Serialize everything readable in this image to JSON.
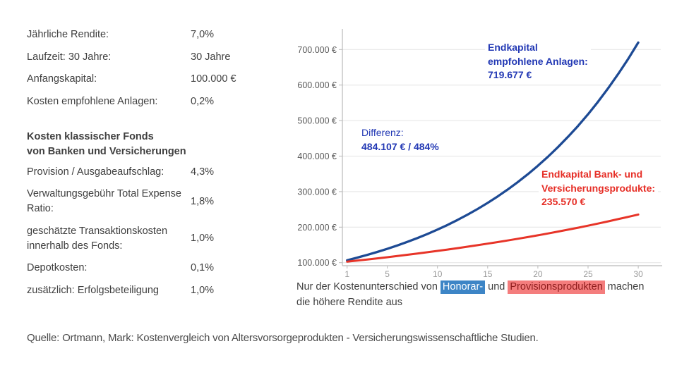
{
  "colors": {
    "blue_curve": "#1d4a94",
    "red_curve": "#e73428",
    "blue_text": "#2238b4",
    "red_text": "#e62e26",
    "chip_blue_bg": "#3d85c6",
    "chip_blue_text": "#ffffff",
    "chip_red_bg": "#f47d7d",
    "chip_red_text": "#8f1d1d",
    "grid": "#e4e4e4",
    "axis": "#b9b9b9",
    "xtick_label": "#9a9a9a",
    "ytick_label": "#5a5a5a",
    "body_text": "#3f3f3f",
    "source_text": "#4a4a4a"
  },
  "params": {
    "rows": [
      {
        "label": "Jährliche Rendite:",
        "value": "7,0%"
      },
      {
        "label": "Laufzeit: 30 Jahre:",
        "value": "30 Jahre"
      },
      {
        "label": "Anfangskapital:",
        "value": "100.000 €"
      },
      {
        "label": "Kosten empfohlene Anlagen:",
        "value": "0,2%"
      }
    ],
    "section_title_line1": "Kosten klassischer Fonds",
    "section_title_line2": "von Banken und Versicherungen",
    "cost_rows": [
      {
        "label": "Provision / Ausgabeaufschlag:",
        "value": "4,3%"
      },
      {
        "label": "Verwaltungsgebühr Total Expense Ratio:",
        "value": "1,8%"
      },
      {
        "label": "geschätzte Transaktionskosten innerhalb des Fonds:",
        "value": "1,0%"
      },
      {
        "label": "Depotkosten:",
        "value": "0,1%"
      },
      {
        "label": "zusätzlich: Erfolgsbeteiligung",
        "value": "1,0%"
      }
    ]
  },
  "chart_data": {
    "type": "line",
    "x": [
      1,
      2,
      3,
      4,
      5,
      6,
      7,
      8,
      9,
      10,
      11,
      12,
      13,
      14,
      15,
      16,
      17,
      18,
      19,
      20,
      21,
      22,
      23,
      24,
      25,
      26,
      27,
      28,
      29,
      30
    ],
    "series": [
      {
        "name": "Endkapital empfohlene Anlagen",
        "color_key": "blue_curve",
        "stroke_width": 3.3,
        "values": [
          106800,
          114062,
          121819,
          130102,
          138949,
          148398,
          158489,
          169266,
          180776,
          193069,
          206198,
          220219,
          235194,
          251187,
          268268,
          286510,
          305993,
          326801,
          349023,
          372757,
          398104,
          425175,
          454087,
          484965,
          517943,
          553163,
          590778,
          630951,
          673856,
          719677
        ]
      },
      {
        "name": "Endkapital Bank- und Versicherungsprodukte",
        "color_key": "red_curve",
        "stroke_width": 3,
        "values": [
          102897,
          105879,
          108947,
          112104,
          115353,
          118696,
          122135,
          125675,
          129317,
          133064,
          136920,
          140888,
          144971,
          149172,
          153495,
          157943,
          162520,
          167229,
          172075,
          177062,
          182193,
          187472,
          192905,
          198495,
          204247,
          210166,
          216256,
          222523,
          228971,
          235570
        ]
      }
    ],
    "xticks": [
      1,
      5,
      10,
      15,
      20,
      25,
      30
    ],
    "xtick_labels": [
      "1",
      "5",
      "10",
      "15",
      "20",
      "25",
      "30"
    ],
    "yticks": [
      100000,
      200000,
      300000,
      400000,
      500000,
      600000,
      700000
    ],
    "ytick_labels": [
      "100.000 €",
      "200.000 €",
      "300.000 €",
      "400.000 €",
      "500.000 €",
      "600.000 €",
      "700.000 €"
    ],
    "ylim": [
      91000,
      755000
    ],
    "grid": "horizontal",
    "legend": "none",
    "title": "",
    "xlabel": "",
    "ylabel": "",
    "annotations": {
      "recommended": {
        "line1": "Endkapital",
        "line2": "empfohlene Anlagen:",
        "value": "719.677 €"
      },
      "difference": {
        "label": "Differenz:",
        "value": "484.107 € / 484%"
      },
      "bank": {
        "line1": "Endkapital Bank- und",
        "line2": "Versicherungsprodukte:",
        "value": "235.570 €"
      }
    }
  },
  "caption": {
    "prefix": "Nur der Kostenunterschied von ",
    "chip_blue": "Honorar-",
    "mid": " und ",
    "chip_red": "Provisionsprodukten",
    "suffix": " machen",
    "line2": "die höhere Rendite aus"
  },
  "source": "Quelle: Ortmann, Mark: Kostenvergleich von Altersvorsorgeprodukten - Versicherungswissenschaftliche Studien."
}
